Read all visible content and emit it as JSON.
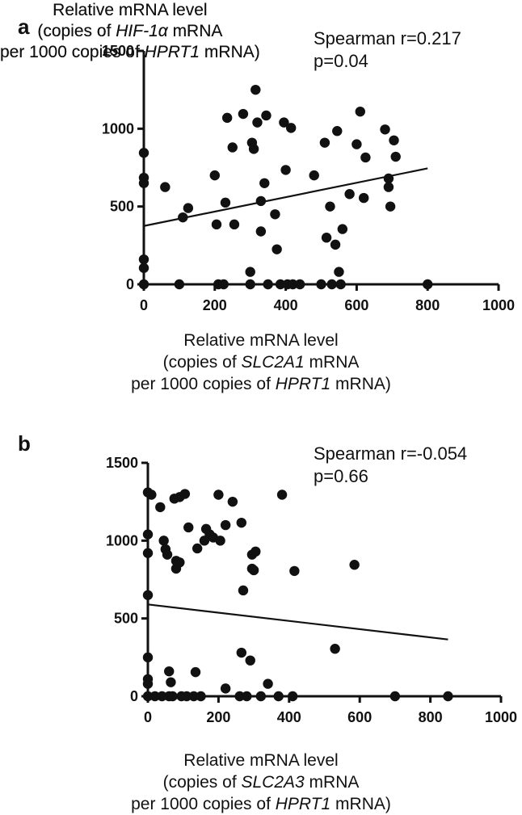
{
  "chart_data": [
    {
      "type": "scatter",
      "panel_label": "a",
      "stats": [
        "Spearman r=0.217",
        "p=0.04"
      ],
      "xlabel_lines": [
        "Relative mRNA level",
        "(copies of |SLC2A1|  mRNA",
        "per 1000 copies of |HPRT1| mRNA)"
      ],
      "ylabel_lines": [
        "Relative mRNA level",
        "(copies of |HIF-1α| mRNA",
        "per 1000 copies of |HPRT1| mRNA)"
      ],
      "xlim": [
        0,
        1000
      ],
      "ylim": [
        0,
        1500
      ],
      "xticks": [
        0,
        200,
        400,
        600,
        800,
        1000
      ],
      "yticks": [
        0,
        500,
        1000,
        1500
      ],
      "fit_line": {
        "x": [
          0,
          800
        ],
        "y": [
          375,
          745
        ]
      },
      "points": [
        [
          0,
          845
        ],
        [
          0,
          685
        ],
        [
          0,
          650
        ],
        [
          0,
          160
        ],
        [
          0,
          105
        ],
        [
          0,
          0
        ],
        [
          60,
          625
        ],
        [
          100,
          0
        ],
        [
          110,
          430
        ],
        [
          125,
          490
        ],
        [
          200,
          700
        ],
        [
          205,
          385
        ],
        [
          210,
          0
        ],
        [
          225,
          0
        ],
        [
          230,
          525
        ],
        [
          235,
          1070
        ],
        [
          250,
          880
        ],
        [
          255,
          385
        ],
        [
          280,
          1095
        ],
        [
          300,
          80
        ],
        [
          300,
          0
        ],
        [
          305,
          910
        ],
        [
          310,
          870
        ],
        [
          315,
          1250
        ],
        [
          320,
          1040
        ],
        [
          330,
          535
        ],
        [
          330,
          340
        ],
        [
          340,
          650
        ],
        [
          345,
          1085
        ],
        [
          350,
          0
        ],
        [
          370,
          450
        ],
        [
          375,
          225
        ],
        [
          385,
          0
        ],
        [
          395,
          1040
        ],
        [
          400,
          735
        ],
        [
          405,
          0
        ],
        [
          415,
          1005
        ],
        [
          420,
          0
        ],
        [
          440,
          0
        ],
        [
          480,
          700
        ],
        [
          500,
          0
        ],
        [
          510,
          910
        ],
        [
          515,
          300
        ],
        [
          525,
          500
        ],
        [
          530,
          0
        ],
        [
          540,
          255
        ],
        [
          545,
          985
        ],
        [
          550,
          80
        ],
        [
          555,
          0
        ],
        [
          560,
          355
        ],
        [
          580,
          580
        ],
        [
          600,
          900
        ],
        [
          610,
          1110
        ],
        [
          620,
          555
        ],
        [
          625,
          815
        ],
        [
          680,
          995
        ],
        [
          690,
          625
        ],
        [
          690,
          680
        ],
        [
          695,
          500
        ],
        [
          705,
          925
        ],
        [
          710,
          820
        ],
        [
          800,
          0
        ]
      ]
    },
    {
      "type": "scatter",
      "panel_label": "b",
      "stats": [
        "Spearman r=-0.054",
        "p=0.66"
      ],
      "xlabel_lines": [
        "Relative mRNA level",
        "(copies of |SLC2A3|  mRNA",
        "per 1000 copies of |HPRT1| mRNA)"
      ],
      "ylabel_lines": [
        "Relative mRNA level",
        "(copies of |HIF-1α| mRNA",
        "per 1000 copies of |HPRT1| mRNA)"
      ],
      "xlim": [
        0,
        1000
      ],
      "ylim": [
        0,
        1500
      ],
      "xticks": [
        0,
        200,
        400,
        600,
        800,
        1000
      ],
      "yticks": [
        0,
        500,
        1000,
        1500
      ],
      "fit_line": {
        "x": [
          0,
          850
        ],
        "y": [
          590,
          365
        ]
      },
      "points": [
        [
          0,
          1310
        ],
        [
          0,
          1040
        ],
        [
          0,
          920
        ],
        [
          0,
          650
        ],
        [
          0,
          250
        ],
        [
          0,
          110
        ],
        [
          0,
          80
        ],
        [
          0,
          0
        ],
        [
          10,
          1295
        ],
        [
          20,
          0
        ],
        [
          35,
          1215
        ],
        [
          40,
          0
        ],
        [
          45,
          1000
        ],
        [
          50,
          945
        ],
        [
          55,
          910
        ],
        [
          60,
          160
        ],
        [
          60,
          0
        ],
        [
          65,
          90
        ],
        [
          70,
          0
        ],
        [
          75,
          1270
        ],
        [
          80,
          870
        ],
        [
          80,
          820
        ],
        [
          90,
          1280
        ],
        [
          90,
          860
        ],
        [
          95,
          0
        ],
        [
          105,
          1300
        ],
        [
          110,
          0
        ],
        [
          115,
          1085
        ],
        [
          130,
          0
        ],
        [
          135,
          155
        ],
        [
          140,
          950
        ],
        [
          150,
          0
        ],
        [
          160,
          1000
        ],
        [
          165,
          1075
        ],
        [
          175,
          1040
        ],
        [
          185,
          1020
        ],
        [
          200,
          1295
        ],
        [
          205,
          1000
        ],
        [
          220,
          50
        ],
        [
          220,
          1100
        ],
        [
          240,
          1250
        ],
        [
          260,
          0
        ],
        [
          265,
          1115
        ],
        [
          265,
          280
        ],
        [
          270,
          680
        ],
        [
          280,
          0
        ],
        [
          290,
          230
        ],
        [
          295,
          910
        ],
        [
          295,
          820
        ],
        [
          300,
          810
        ],
        [
          305,
          930
        ],
        [
          320,
          0
        ],
        [
          340,
          80
        ],
        [
          370,
          0
        ],
        [
          380,
          1295
        ],
        [
          410,
          0
        ],
        [
          415,
          805
        ],
        [
          530,
          305
        ],
        [
          585,
          845
        ],
        [
          700,
          0
        ],
        [
          850,
          0
        ]
      ]
    }
  ]
}
